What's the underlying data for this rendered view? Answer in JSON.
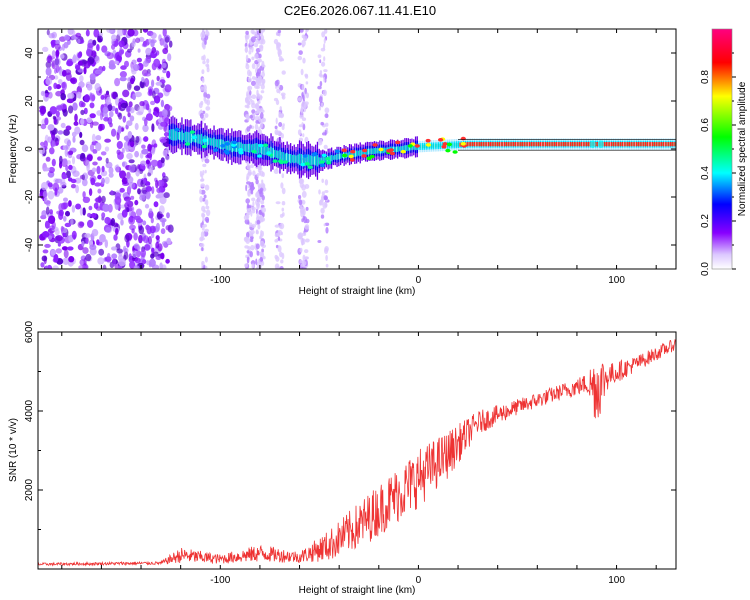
{
  "title": "C2E6.2026.067.11.41.E10",
  "chart_data": [
    {
      "type": "heatmap",
      "xlabel": "Height of straight line (km)",
      "ylabel": "Frequency (Hz)",
      "xlim": [
        -192,
        130
      ],
      "ylim": [
        -50,
        50
      ],
      "x_ticks": [
        -100,
        0,
        100
      ],
      "y_ticks": [
        -40,
        -20,
        0,
        20,
        40
      ],
      "colorbar": {
        "label": "Normalized spectral amplitude",
        "range": [
          0,
          1
        ],
        "ticks": [
          0.0,
          0.2,
          0.4,
          0.6,
          0.8
        ],
        "colors": [
          "#ffffff",
          "#8800ff",
          "#0000ff",
          "#00ffff",
          "#00ff00",
          "#ffff00",
          "#ff0000",
          "#ff0080"
        ]
      },
      "ridge": [
        {
          "x": -125,
          "f": 6
        },
        {
          "x": -110,
          "f": 4
        },
        {
          "x": -95,
          "f": 1
        },
        {
          "x": -80,
          "f": 0
        },
        {
          "x": -65,
          "f": -4
        },
        {
          "x": -50,
          "f": -5
        },
        {
          "x": -40,
          "f": -3
        },
        {
          "x": -25,
          "f": -1
        },
        {
          "x": -10,
          "f": 0
        },
        {
          "x": 0,
          "f": 1
        },
        {
          "x": 25,
          "f": 2
        },
        {
          "x": 130,
          "f": 2
        }
      ]
    },
    {
      "type": "line",
      "xlabel": "Height of straight line (km)",
      "ylabel": "SNR (10 * v/v)",
      "xlim": [
        -192,
        130
      ],
      "ylim": [
        0,
        6000
      ],
      "x_ticks": [
        -100,
        0,
        100
      ],
      "y_ticks": [
        2000,
        4000,
        6000
      ],
      "color": "#ee3333",
      "envelope": [
        {
          "x": -192,
          "y": 120,
          "noise": 35
        },
        {
          "x": -130,
          "y": 150,
          "noise": 40
        },
        {
          "x": -120,
          "y": 350,
          "noise": 200
        },
        {
          "x": -100,
          "y": 250,
          "noise": 120
        },
        {
          "x": -80,
          "y": 400,
          "noise": 220
        },
        {
          "x": -60,
          "y": 300,
          "noise": 150
        },
        {
          "x": -45,
          "y": 600,
          "noise": 400
        },
        {
          "x": -30,
          "y": 1100,
          "noise": 600
        },
        {
          "x": -15,
          "y": 1700,
          "noise": 700
        },
        {
          "x": 0,
          "y": 2300,
          "noise": 750
        },
        {
          "x": 15,
          "y": 2900,
          "noise": 600
        },
        {
          "x": 30,
          "y": 3700,
          "noise": 300
        },
        {
          "x": 50,
          "y": 4100,
          "noise": 200
        },
        {
          "x": 70,
          "y": 4450,
          "noise": 200
        },
        {
          "x": 85,
          "y": 4700,
          "noise": 250
        },
        {
          "x": 90,
          "y": 4600,
          "noise": 1000
        },
        {
          "x": 96,
          "y": 4900,
          "noise": 300
        },
        {
          "x": 110,
          "y": 5200,
          "noise": 200
        },
        {
          "x": 130,
          "y": 5700,
          "noise": 150
        }
      ]
    }
  ]
}
